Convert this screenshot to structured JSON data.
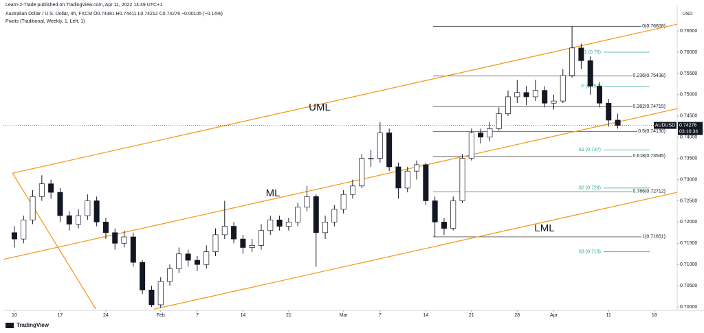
{
  "header": {
    "publisher": "Learn-2-Trade published on TradingView.com, Apr 11, 2022 14:49 UTC+1",
    "symbol_line": "Australian Dollar / U.S. Dollar, 4h, FXCM  O0.74381 H0.74411 L0.74212 C0.74276 −0.00105 (−0.14%)",
    "indicator": "Pivots (Traditional, Weekly, 1, Left, 1)",
    "currency": "USD"
  },
  "footer": {
    "brand": "TradingView"
  },
  "chart_data": {
    "type": "candlestick",
    "up_color": "#ffffff",
    "down_color": "#131722",
    "wick_color": "#131722",
    "x": [
      0,
      1,
      2,
      3,
      4,
      5,
      6,
      7,
      8,
      9,
      10,
      11,
      12,
      13,
      14,
      15,
      16,
      17,
      18,
      19,
      20,
      21,
      22,
      23,
      24,
      25,
      26,
      27,
      28,
      29,
      30,
      31,
      32,
      33,
      34,
      35,
      36,
      37,
      38,
      39,
      40,
      41,
      42,
      43,
      44,
      45,
      46,
      47,
      48,
      49,
      50,
      51,
      52,
      53,
      54,
      55,
      56,
      57,
      58,
      59,
      60,
      61,
      62,
      63,
      64,
      65,
      66
    ],
    "open": [
      0.7175,
      0.716,
      0.7205,
      0.726,
      0.729,
      0.727,
      0.7215,
      0.7195,
      0.7215,
      0.725,
      0.72,
      0.7175,
      0.715,
      0.7165,
      0.7105,
      0.704,
      0.7005,
      0.706,
      0.709,
      0.7125,
      0.711,
      0.71,
      0.713,
      0.717,
      0.719,
      0.716,
      0.714,
      0.7145,
      0.718,
      0.7205,
      0.719,
      0.72,
      0.7235,
      0.726,
      0.7175,
      0.72,
      0.723,
      0.7265,
      0.7285,
      0.735,
      0.735,
      0.741,
      0.733,
      0.728,
      0.732,
      0.7335,
      0.725,
      0.72,
      0.7185,
      0.725,
      0.735,
      0.741,
      0.74,
      0.742,
      0.7455,
      0.7495,
      0.7505,
      0.7495,
      0.751,
      0.748,
      0.7485,
      0.7545,
      0.761,
      0.758,
      0.752,
      0.748,
      0.744
    ],
    "high": [
      0.719,
      0.7215,
      0.7275,
      0.731,
      0.73,
      0.728,
      0.7225,
      0.723,
      0.7265,
      0.726,
      0.721,
      0.7185,
      0.718,
      0.7175,
      0.711,
      0.705,
      0.707,
      0.71,
      0.714,
      0.7135,
      0.712,
      0.7145,
      0.7185,
      0.725,
      0.72,
      0.717,
      0.716,
      0.7195,
      0.7215,
      0.7215,
      0.721,
      0.7245,
      0.7285,
      0.7265,
      0.7215,
      0.724,
      0.7275,
      0.73,
      0.736,
      0.737,
      0.7435,
      0.742,
      0.734,
      0.733,
      0.7345,
      0.734,
      0.726,
      0.721,
      0.726,
      0.736,
      0.742,
      0.742,
      0.7435,
      0.747,
      0.751,
      0.7535,
      0.752,
      0.7535,
      0.752,
      0.75,
      0.756,
      0.7661,
      0.762,
      0.759,
      0.753,
      0.749,
      0.7455
    ],
    "low": [
      0.714,
      0.715,
      0.7195,
      0.725,
      0.7255,
      0.72,
      0.718,
      0.7185,
      0.7205,
      0.719,
      0.716,
      0.7135,
      0.714,
      0.7095,
      0.703,
      0.7,
      0.6998,
      0.705,
      0.708,
      0.7095,
      0.7085,
      0.709,
      0.712,
      0.716,
      0.715,
      0.7125,
      0.713,
      0.7135,
      0.717,
      0.718,
      0.718,
      0.719,
      0.7225,
      0.7095,
      0.716,
      0.719,
      0.722,
      0.7255,
      0.728,
      0.733,
      0.734,
      0.732,
      0.7255,
      0.727,
      0.73,
      0.724,
      0.7165,
      0.717,
      0.718,
      0.7245,
      0.7345,
      0.7385,
      0.739,
      0.7415,
      0.745,
      0.748,
      0.7475,
      0.7485,
      0.747,
      0.7465,
      0.748,
      0.754,
      0.756,
      0.75,
      0.747,
      0.7425,
      0.742
    ],
    "close": [
      0.716,
      0.7205,
      0.726,
      0.729,
      0.727,
      0.7215,
      0.7195,
      0.7215,
      0.725,
      0.72,
      0.7175,
      0.715,
      0.7165,
      0.7105,
      0.704,
      0.7005,
      0.706,
      0.709,
      0.7125,
      0.711,
      0.71,
      0.713,
      0.717,
      0.719,
      0.716,
      0.714,
      0.7145,
      0.718,
      0.7205,
      0.719,
      0.72,
      0.7235,
      0.726,
      0.7175,
      0.72,
      0.723,
      0.7265,
      0.7285,
      0.735,
      0.735,
      0.741,
      0.733,
      0.728,
      0.732,
      0.7335,
      0.725,
      0.72,
      0.7185,
      0.725,
      0.735,
      0.741,
      0.74,
      0.742,
      0.7455,
      0.7495,
      0.7505,
      0.7495,
      0.751,
      0.748,
      0.7485,
      0.7545,
      0.761,
      0.758,
      0.752,
      0.748,
      0.744,
      0.74276
    ],
    "xlim": [
      -1.2,
      72.5
    ],
    "xticks": [
      {
        "value": 0,
        "label": "10"
      },
      {
        "value": 5,
        "label": "17"
      },
      {
        "value": 10,
        "label": "24"
      },
      {
        "value": 16,
        "label": "Feb"
      },
      {
        "value": 20,
        "label": "7"
      },
      {
        "value": 25,
        "label": "14"
      },
      {
        "value": 30,
        "label": "21"
      },
      {
        "value": 36,
        "label": "Mar"
      },
      {
        "value": 40,
        "label": "7"
      },
      {
        "value": 45,
        "label": "14"
      },
      {
        "value": 50,
        "label": "21"
      },
      {
        "value": 55,
        "label": "28"
      },
      {
        "value": 59,
        "label": "Apr"
      },
      {
        "value": 65,
        "label": "11"
      },
      {
        "value": 70,
        "label": "18"
      }
    ],
    "ylim": [
      0.6992,
      0.771
    ],
    "yticks": [
      {
        "value": 0.765,
        "label": "0.76500"
      },
      {
        "value": 0.76,
        "label": "0.76000"
      },
      {
        "value": 0.755,
        "label": "0.75500"
      },
      {
        "value": 0.75,
        "label": "0.75000"
      },
      {
        "value": 0.745,
        "label": "0.74500"
      },
      {
        "value": 0.74,
        "label": "0.74000"
      },
      {
        "value": 0.735,
        "label": "0.73500"
      },
      {
        "value": 0.73,
        "label": "0.73000"
      },
      {
        "value": 0.725,
        "label": "0.72500"
      },
      {
        "value": 0.72,
        "label": "0.72000"
      },
      {
        "value": 0.715,
        "label": "0.71500"
      },
      {
        "value": 0.71,
        "label": "0.71000"
      },
      {
        "value": 0.705,
        "label": "0.70500"
      },
      {
        "value": 0.7,
        "label": "0.70000"
      }
    ],
    "grid": false,
    "last_price": {
      "symbol": "AUDUSD",
      "value": 0.74276,
      "countdown": "03:10:34"
    },
    "channel_color": "#f59a23",
    "channel_lines": [
      {
        "name": "UML",
        "x": [
          -0.2,
          72.5
        ],
        "y": [
          0.7315,
          0.7666
        ]
      },
      {
        "name": "ML",
        "x": [
          -1.2,
          72.5
        ],
        "y": [
          0.7112,
          0.7467
        ]
      },
      {
        "name": "LML",
        "x": [
          15.3,
          72.5
        ],
        "y": [
          0.6995,
          0.727
        ]
      },
      {
        "x": [
          -0.2,
          8.9
        ],
        "y": [
          0.7315,
          0.6995
        ]
      }
    ],
    "fib_color": "#555555",
    "fib_levels": [
      {
        "label": "0(0.76608)",
        "value": 0.76608
      },
      {
        "label": "0.236(0.75438)",
        "value": 0.75438
      },
      {
        "label": "0.382(0.74715)",
        "value": 0.74715
      },
      {
        "label": "0.5(0.74130)",
        "value": 0.7413
      },
      {
        "label": "0.618(0.73545)",
        "value": 0.73545
      },
      {
        "label": "0.786(0.72712)",
        "value": 0.72712
      },
      {
        "label": "1(0.71651)",
        "value": 0.71651
      }
    ],
    "pivot_color": "#26a69a",
    "pivots": [
      {
        "label": "R1 (0.76)",
        "value": 0.76
      },
      {
        "label": "P (0.752)",
        "value": 0.752
      },
      {
        "label": "S1 (0.737)",
        "value": 0.737
      },
      {
        "label": "S2 (0.728)",
        "value": 0.728
      },
      {
        "label": "S3 (0.713)",
        "value": 0.713
      }
    ]
  }
}
